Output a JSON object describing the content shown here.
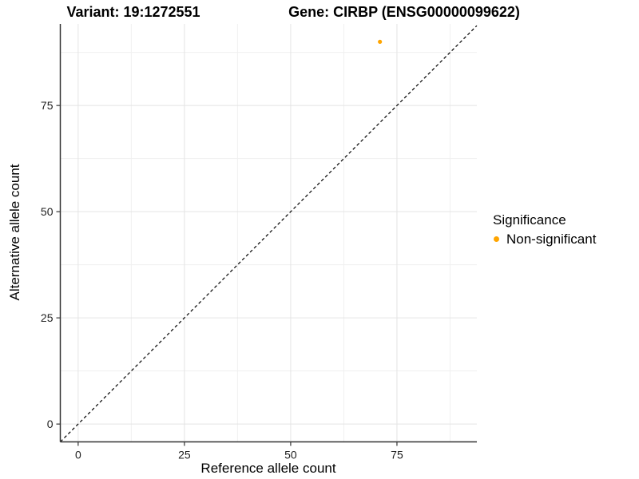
{
  "chart_data": {
    "type": "scatter",
    "title_left": "Variant: 19:1272551",
    "title_right": "Gene: CIRBP (ENSG00000099622)",
    "xlabel": "Reference allele count",
    "ylabel": "Alternative allele count",
    "x_ticks": [
      0,
      25,
      50,
      75
    ],
    "y_ticks": [
      0,
      25,
      50,
      75
    ],
    "x_minor": [
      12.5,
      37.5,
      62.5,
      87.5
    ],
    "y_minor": [
      12.5,
      37.5,
      62.5,
      87.5
    ],
    "xlim": [
      -4.2,
      93.8
    ],
    "ylim": [
      -4.2,
      94.2
    ],
    "grid": "major+minor",
    "legend_position": "right",
    "identity_line": {
      "style": "dashed",
      "slope": 1,
      "intercept": 0,
      "color": "#000000"
    },
    "series": [
      {
        "name": "Non-significant",
        "color": "#FFA500",
        "points": [
          {
            "x": 71,
            "y": 90
          }
        ]
      }
    ],
    "colors": {
      "grid_major": "#E4E4E4",
      "grid_minor": "#F0F0F0",
      "axis": "#333333",
      "background": "#FFFFFF"
    }
  },
  "legend": {
    "title": "Significance",
    "items": [
      {
        "label": "Non-significant",
        "color": "#FFA500"
      }
    ]
  }
}
